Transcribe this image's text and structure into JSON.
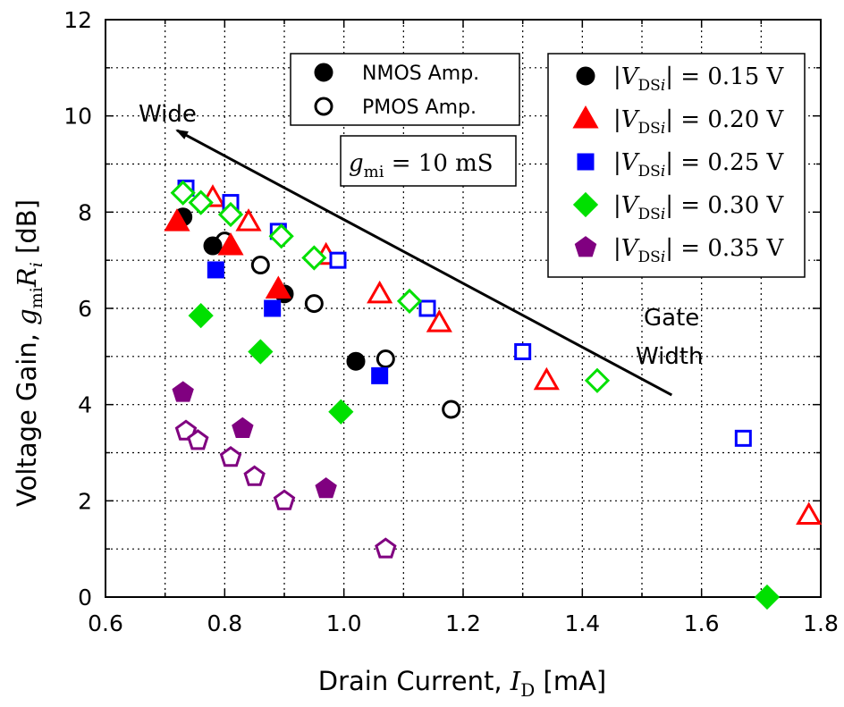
{
  "chart_data": {
    "type": "scatter",
    "title": "",
    "xlabel": {
      "prefix": "Drain Current, ",
      "var": "I",
      "sub": "D",
      "suffix": " [mA]"
    },
    "ylabel": {
      "prefix": "Voltage Gain, ",
      "var1": "g",
      "sub1": "mi",
      "var2": "R",
      "sub2": "i",
      "suffix": " [dB]"
    },
    "xlim": [
      0.6,
      1.8
    ],
    "ylim": [
      0,
      12
    ],
    "xticks": [
      "0.6",
      "0.8",
      "1.0",
      "1.2",
      "1.4",
      "1.6",
      "1.8"
    ],
    "yticks": [
      "0",
      "2",
      "4",
      "6",
      "8",
      "10",
      "12"
    ],
    "grid": true,
    "legend_amp": [
      {
        "label": "NMOS Amp.",
        "fill": "filled"
      },
      {
        "label": "PMOS Amp.",
        "fill": "open"
      }
    ],
    "legend_vds": {
      "var": "V",
      "sub": "DSi",
      "eq": " = "
    },
    "annotation_gm": {
      "var": "g",
      "sub": "mi",
      "text": " = 10 mS"
    },
    "arrow_label_start": "Wide",
    "arrow_label_end": [
      "Gate",
      "Width"
    ],
    "series": [
      {
        "name": "0.15 V",
        "value_text": "0.15 V",
        "marker": "circle",
        "color": "#000000",
        "nmos": [
          [
            0.73,
            7.9
          ],
          [
            0.78,
            7.3
          ],
          [
            0.9,
            6.3
          ],
          [
            1.02,
            4.9
          ]
        ],
        "pmos": [
          [
            0.8,
            7.4
          ],
          [
            0.86,
            6.9
          ],
          [
            0.95,
            6.1
          ],
          [
            1.07,
            4.95
          ],
          [
            1.18,
            3.9
          ]
        ]
      },
      {
        "name": "0.20 V",
        "value_text": "0.20 V",
        "marker": "triangle",
        "color": "#ff0000",
        "nmos": [
          [
            0.72,
            7.8
          ],
          [
            0.81,
            7.3
          ],
          [
            0.89,
            6.4
          ]
        ],
        "pmos": [
          [
            0.78,
            8.3
          ],
          [
            0.84,
            7.8
          ],
          [
            0.97,
            7.1
          ],
          [
            1.06,
            6.3
          ],
          [
            1.16,
            5.7
          ],
          [
            1.34,
            4.5
          ],
          [
            1.78,
            1.7
          ]
        ]
      },
      {
        "name": "0.25 V",
        "value_text": "0.25 V",
        "marker": "square",
        "color": "#0000ff",
        "nmos": [
          [
            0.785,
            6.8
          ],
          [
            0.88,
            6.0
          ],
          [
            1.06,
            4.6
          ]
        ],
        "pmos": [
          [
            0.735,
            8.5
          ],
          [
            0.81,
            8.2
          ],
          [
            0.89,
            7.6
          ],
          [
            0.99,
            7.0
          ],
          [
            1.14,
            6.0
          ],
          [
            1.3,
            5.1
          ],
          [
            1.67,
            3.3
          ]
        ]
      },
      {
        "name": "0.30 V",
        "value_text": "0.30 V",
        "marker": "diamond",
        "color": "#00e000",
        "nmos": [
          [
            0.76,
            5.85
          ],
          [
            0.86,
            5.1
          ],
          [
            0.995,
            3.85
          ],
          [
            1.71,
            0.0
          ]
        ],
        "pmos": [
          [
            0.73,
            8.4
          ],
          [
            0.76,
            8.2
          ],
          [
            0.81,
            7.95
          ],
          [
            0.895,
            7.5
          ],
          [
            0.95,
            7.05
          ],
          [
            1.11,
            6.15
          ],
          [
            1.425,
            4.5
          ]
        ]
      },
      {
        "name": "0.35 V",
        "value_text": "0.35 V",
        "marker": "pentagon",
        "color": "#800080",
        "nmos": [
          [
            0.73,
            4.25
          ],
          [
            0.83,
            3.5
          ],
          [
            0.97,
            2.25
          ]
        ],
        "pmos": [
          [
            0.735,
            3.45
          ],
          [
            0.755,
            3.25
          ],
          [
            0.81,
            2.9
          ],
          [
            0.85,
            2.5
          ],
          [
            0.9,
            2.0
          ],
          [
            1.07,
            1.0
          ]
        ]
      }
    ],
    "arrow": {
      "from": [
        1.55,
        4.2
      ],
      "to": [
        0.72,
        9.7
      ]
    }
  }
}
